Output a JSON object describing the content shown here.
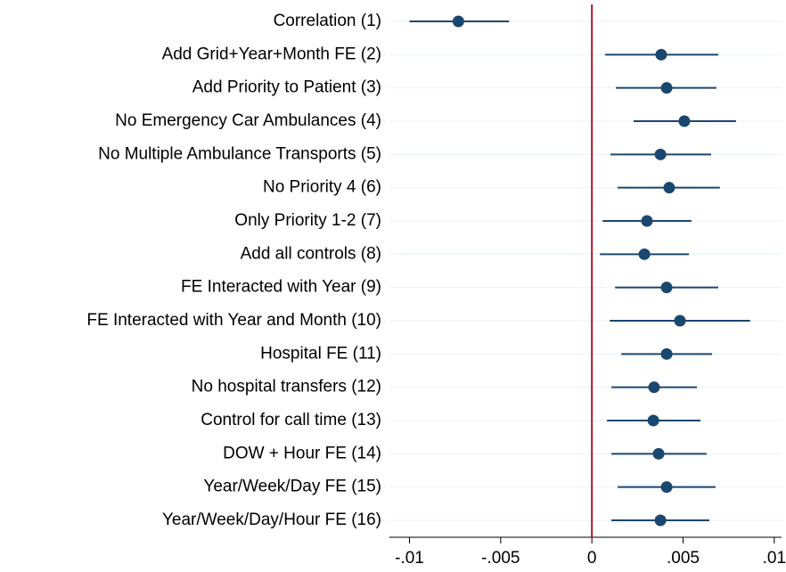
{
  "chart_data": {
    "type": "coefplot",
    "categories": [
      "Correlation (1)",
      "Add Grid+Year+Month FE (2)",
      "Add Priority to Patient (3)",
      "No Emergency Car Ambulances (4)",
      "No Multiple Ambulance Transports (5)",
      "No Priority 4 (6)",
      "Only Priority 1-2 (7)",
      "Add all controls (8)",
      "FE Interacted with Year (9)",
      "FE Interacted with Year and Month (10)",
      "Hospital FE (11)",
      "No hospital transfers (12)",
      "Control for call time (13)",
      "DOW + Hour FE (14)",
      "Year/Week/Day FE (15)",
      "Year/Week/Day/Hour FE (16)"
    ],
    "values": [
      -0.00732,
      0.0038,
      0.0041,
      0.00507,
      0.00376,
      0.00424,
      0.00302,
      0.00288,
      0.0041,
      0.00483,
      0.0041,
      0.00341,
      0.00337,
      0.00366,
      0.0041,
      0.00376
    ],
    "ci_lower": [
      -0.01,
      0.00073,
      0.00132,
      0.00229,
      0.00102,
      0.00141,
      0.00059,
      0.00044,
      0.00127,
      0.00098,
      0.00161,
      0.00107,
      0.00083,
      0.00107,
      0.00141,
      0.00107
    ],
    "ci_upper": [
      -0.00454,
      0.00693,
      0.00683,
      0.0079,
      0.00654,
      0.00702,
      0.00546,
      0.00532,
      0.00693,
      0.00868,
      0.00659,
      0.00576,
      0.00595,
      0.00629,
      0.00678,
      0.00644
    ],
    "color": "#1a476f",
    "xlim": [
      -0.0111,
      0.0104
    ],
    "xticks": [
      {
        "value": -0.01,
        "label": "-.01"
      },
      {
        "value": -0.005,
        "label": "-.005"
      },
      0,
      {
        "value": 0.005,
        "label": ".005"
      },
      {
        "value": 0.01,
        "label": ".01"
      }
    ],
    "xline": 0,
    "xline_color": "#b2182b",
    "grid": true
  }
}
